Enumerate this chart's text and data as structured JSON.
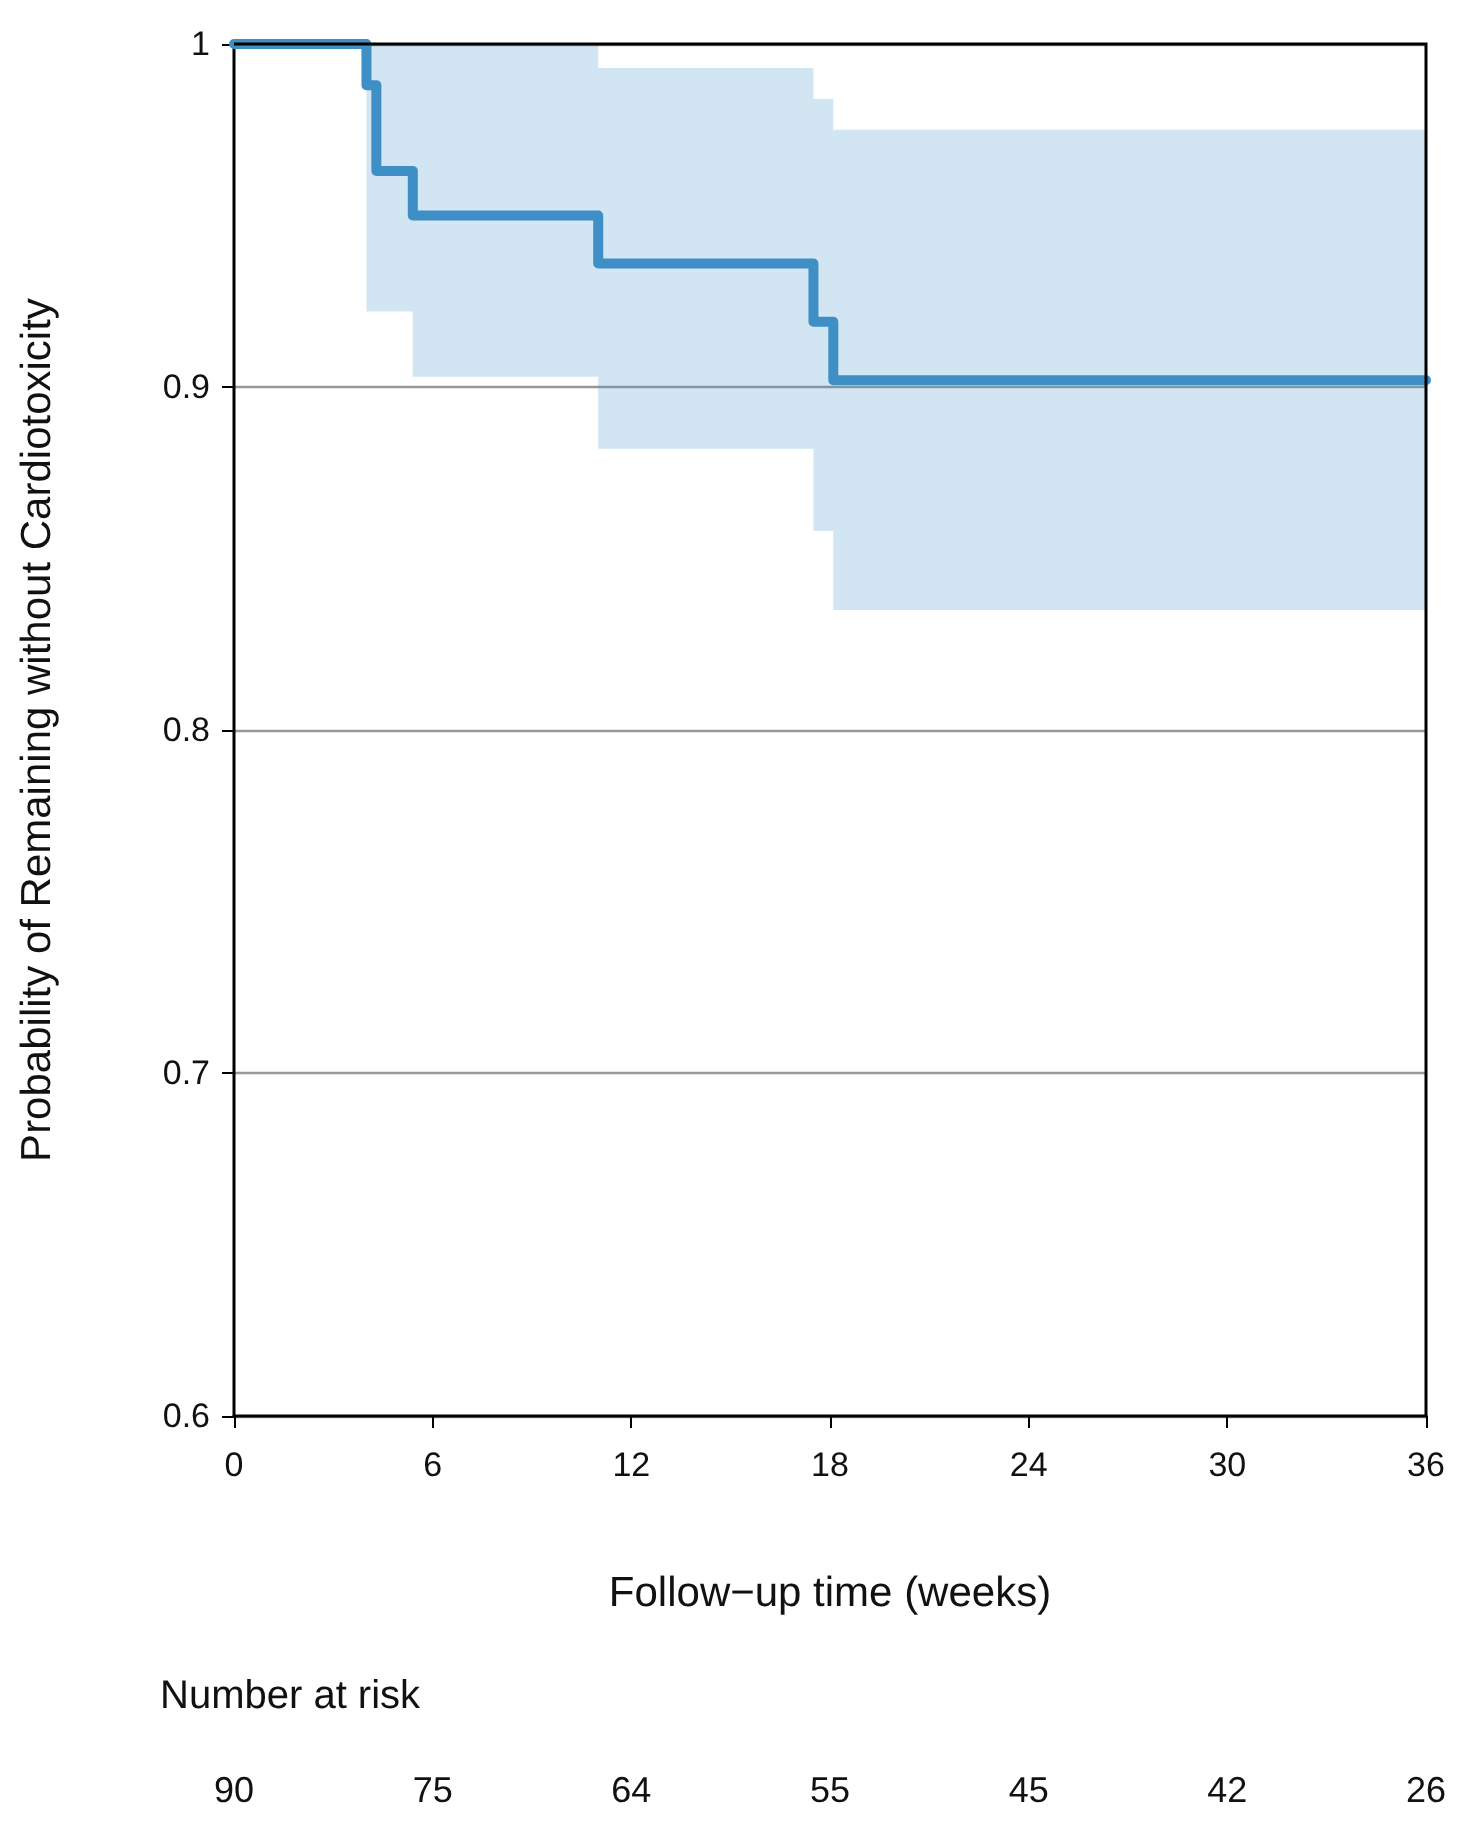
{
  "chart_data": {
    "type": "step",
    "xlabel": "Follow−up time (weeks)",
    "ylabel": "Probability of Remaining without Cardiotoxicity",
    "series": [
      {
        "color": "#3d8fc5",
        "x": [
          0,
          4.0,
          4.3,
          5.4,
          11.0,
          17.5,
          18.1,
          36
        ],
        "values": [
          1,
          0.988,
          0.963,
          0.95,
          0.936,
          0.919,
          0.902,
          0.902
        ],
        "lower": [
          1,
          0.922,
          0.922,
          0.903,
          0.882,
          0.858,
          0.835,
          0.835
        ],
        "upper": [
          1,
          1,
          1,
          1,
          0.993,
          0.984,
          0.975,
          0.975
        ]
      }
    ],
    "xlim": [
      0,
      36
    ],
    "xticks": [
      0,
      6,
      12,
      18,
      24,
      30,
      36
    ],
    "ylim": [
      0.6,
      1
    ],
    "yticks": [
      0.6,
      0.7,
      0.8,
      0.9,
      1
    ],
    "grid": "y",
    "marker": "none",
    "line_style": "solid",
    "annotations": [
      "Number at risk",
      "90",
      "75",
      "64",
      "55",
      "45",
      "42",
      "26"
    ]
  }
}
